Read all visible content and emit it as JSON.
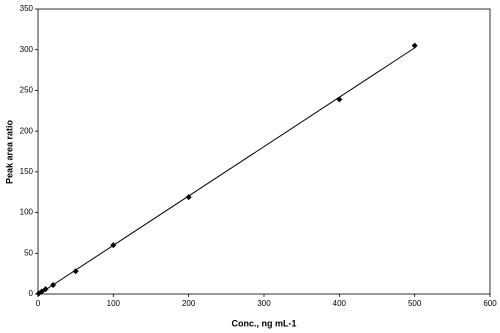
{
  "chart_data": {
    "type": "scatter",
    "x_label": "Conc., ng mL-1",
    "y_label": "Peak  area  ratio",
    "x": [
      1,
      5,
      10,
      20,
      50,
      100,
      200,
      400,
      500
    ],
    "values": [
      0.6,
      3,
      6,
      11,
      28,
      60,
      119,
      239,
      305
    ],
    "color": "#000000",
    "trendline": true,
    "xlim": [
      0,
      600
    ],
    "xticks": [
      0,
      100,
      200,
      300,
      400,
      500,
      600
    ],
    "ylim": [
      0,
      350
    ],
    "yticks": [
      0,
      50,
      100,
      150,
      200,
      250,
      300,
      350
    ],
    "grid": false
  }
}
